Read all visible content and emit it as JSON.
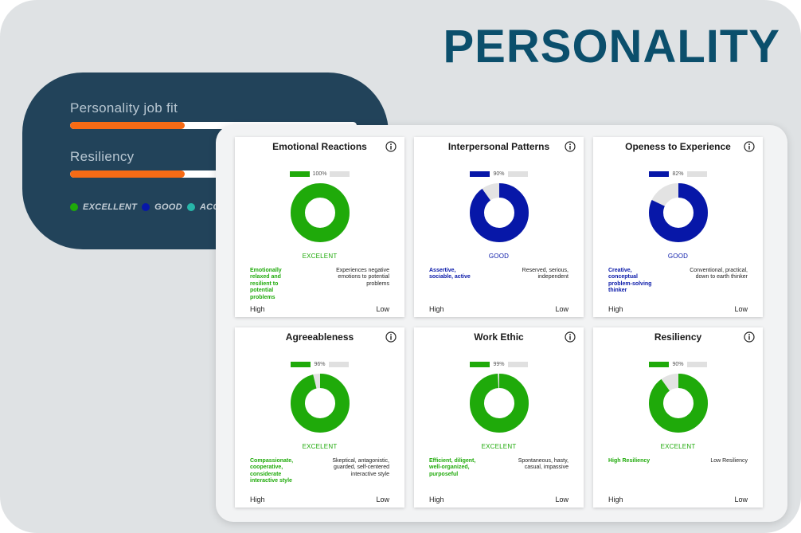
{
  "page_title": "PERSONALITY",
  "summary": {
    "metrics": [
      {
        "label": "Personality job fit",
        "fill": 0.4
      },
      {
        "label": "Resiliency",
        "fill": 0.4
      }
    ],
    "legend": [
      {
        "label": "EXCELLENT",
        "color": "#1faa0a"
      },
      {
        "label": "GOOD",
        "color": "#0717a8"
      },
      {
        "label": "ACCEP",
        "color": "#27b6a9"
      }
    ]
  },
  "cards": [
    {
      "title": "Emotional Reactions",
      "percent_label": "100%",
      "percent": 100,
      "rating": "EXCELENT",
      "color": "#1faa0a",
      "high_desc": "Emotionally relaxed and resilient to potential problems",
      "low_desc": "Experiences negative emotions to potential problems",
      "high_label": "High",
      "low_label": "Low"
    },
    {
      "title": "Interpersonal Patterns",
      "percent_label": "90%",
      "percent": 90,
      "rating": "GOOD",
      "color": "#0717a8",
      "high_desc": "Assertive, sociable, active",
      "low_desc": "Reserved, serious, independent",
      "high_label": "High",
      "low_label": "Low"
    },
    {
      "title": "Openess to Experience",
      "percent_label": "82%",
      "percent": 82,
      "rating": "GOOD",
      "color": "#0717a8",
      "high_desc": "Creative, conceptual problem-solving thinker",
      "low_desc": "Conventional, practical, down to earth thinker",
      "high_label": "High",
      "low_label": "Low"
    },
    {
      "title": "Agreeableness",
      "percent_label": "96%",
      "percent": 96,
      "rating": "EXCELENT",
      "color": "#1faa0a",
      "high_desc": "Compassionate, cooperative, considerate interactive style",
      "low_desc": "Skeptical, antagonistic, guarded, self-centered interactive style",
      "high_label": "High",
      "low_label": "Low"
    },
    {
      "title": "Work Ethic",
      "percent_label": "99%",
      "percent": 99,
      "rating": "EXCELENT",
      "color": "#1faa0a",
      "high_desc": "Efficient, diligent, well-organized, purposeful",
      "low_desc": "Spontaneous, hasty, casual, impassive",
      "high_label": "High",
      "low_label": "Low"
    },
    {
      "title": "Resiliency",
      "percent_label": "90%",
      "percent": 90,
      "rating": "EXCELENT",
      "color": "#1faa0a",
      "high_desc": "High Resiliency",
      "low_desc": "Low Resiliency",
      "high_label": "High",
      "low_label": "Low"
    }
  ]
}
